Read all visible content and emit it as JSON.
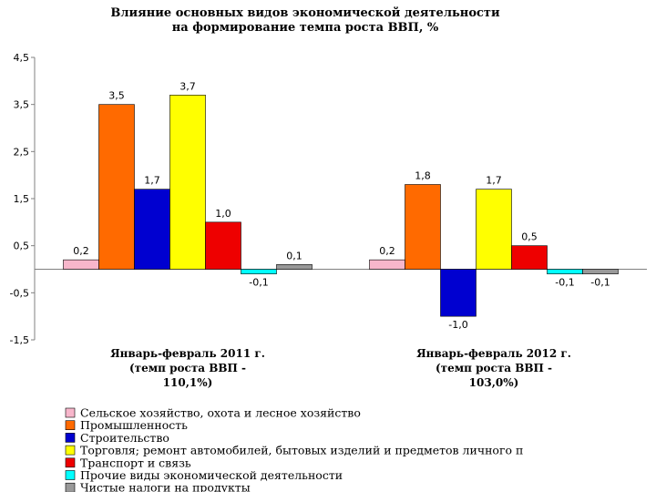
{
  "chart_data": {
    "type": "bar",
    "title": "Влияние основных видов экономической деятельности\nна формирование темпа роста ВВП, %",
    "categories": [
      "Январь-февраль 2011 г.\n(темп роста ВВП -\n110,1%)",
      "Январь-февраль 2012 г.\n(темп роста ВВП -\n103,0%)"
    ],
    "series": [
      {
        "name": "Сельское хозяйство, охота и лесное хозяйство",
        "color": "#f7b6cb",
        "values": [
          0.2,
          0.2
        ],
        "value_labels": [
          "0,2",
          "0,2"
        ]
      },
      {
        "name": "Промышленность",
        "color": "#ff6a00",
        "values": [
          3.5,
          1.8
        ],
        "value_labels": [
          "3,5",
          "1,8"
        ]
      },
      {
        "name": "Строительство",
        "color": "#0000d0",
        "values": [
          1.7,
          -1.0
        ],
        "value_labels": [
          "1,7",
          "-1,0"
        ]
      },
      {
        "name": "Торговля; ремонт автомобилей, бытовых изделий и предметов личного п",
        "color": "#ffff00",
        "values": [
          3.7,
          1.7
        ],
        "value_labels": [
          "3,7",
          "1,7"
        ]
      },
      {
        "name": "Транспорт и связь",
        "color": "#ee0000",
        "values": [
          1.0,
          0.5
        ],
        "value_labels": [
          "1,0",
          "0,5"
        ]
      },
      {
        "name": "Прочие виды экономической деятельности",
        "color": "#00ffff",
        "values": [
          -0.1,
          -0.1
        ],
        "value_labels": [
          "-0,1",
          "-0,1"
        ]
      },
      {
        "name": "Чистые налоги на продукты",
        "color": "#999999",
        "values": [
          0.1,
          -0.1
        ],
        "value_labels": [
          "0,1",
          "-0,1"
        ]
      }
    ],
    "ylim": [
      -1.5,
      4.5
    ],
    "yticks": [
      {
        "value": -1.5,
        "label": "-1,5"
      },
      {
        "value": -0.5,
        "label": "-0,5"
      },
      {
        "value": 0.5,
        "label": "0,5"
      },
      {
        "value": 1.5,
        "label": "1,5"
      },
      {
        "value": 2.5,
        "label": "2,5"
      },
      {
        "value": 3.5,
        "label": "3,5"
      },
      {
        "value": 4.5,
        "label": "4,5"
      }
    ],
    "grid": false
  }
}
